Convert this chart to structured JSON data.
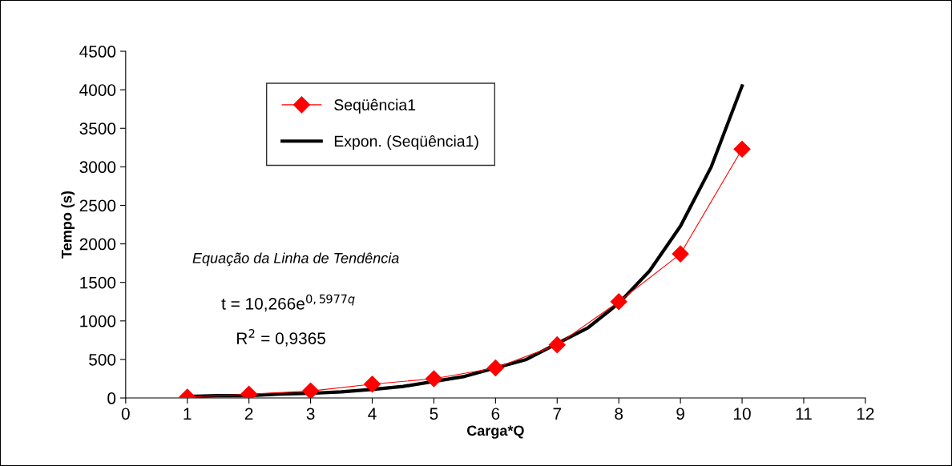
{
  "chart_data": {
    "type": "line",
    "xlabel": "Carga*Q",
    "ylabel": "Tempo (s)",
    "xlim": [
      0,
      12
    ],
    "xticks": [
      0,
      1,
      2,
      3,
      4,
      5,
      6,
      7,
      8,
      9,
      10,
      11,
      12
    ],
    "ylim": [
      0,
      4500
    ],
    "yticks": [
      0,
      500,
      1000,
      1500,
      2000,
      2500,
      3000,
      3500,
      4000,
      4500
    ],
    "grid": false,
    "legend": "top left",
    "series": [
      {
        "name": "Seqüência1",
        "color": "#ff0000",
        "marker": "diamond",
        "x": [
          1,
          2,
          3,
          4,
          5,
          6,
          7,
          8,
          9,
          10
        ],
        "values": [
          10,
          50,
          90,
          180,
          250,
          390,
          690,
          1250,
          1870,
          3230
        ]
      },
      {
        "name": "Expon. (Seqüência1)",
        "color": "#000000",
        "marker": "none",
        "x": [
          1,
          1.5,
          2,
          2.5,
          3,
          3.5,
          4,
          4.5,
          5.5,
          6.5,
          7.5,
          8,
          8.5,
          9,
          9.5,
          10
        ],
        "values": [
          20,
          30,
          30,
          50,
          60,
          80,
          110,
          150,
          280,
          500,
          910,
          1230,
          1650,
          2230,
          3000,
          4050
        ]
      }
    ],
    "annotations": [
      "Equação da Linha de Tendência",
      "t = 10,266e$^{0,5977q}$",
      "R$^{2}$ = 0,9365"
    ]
  }
}
